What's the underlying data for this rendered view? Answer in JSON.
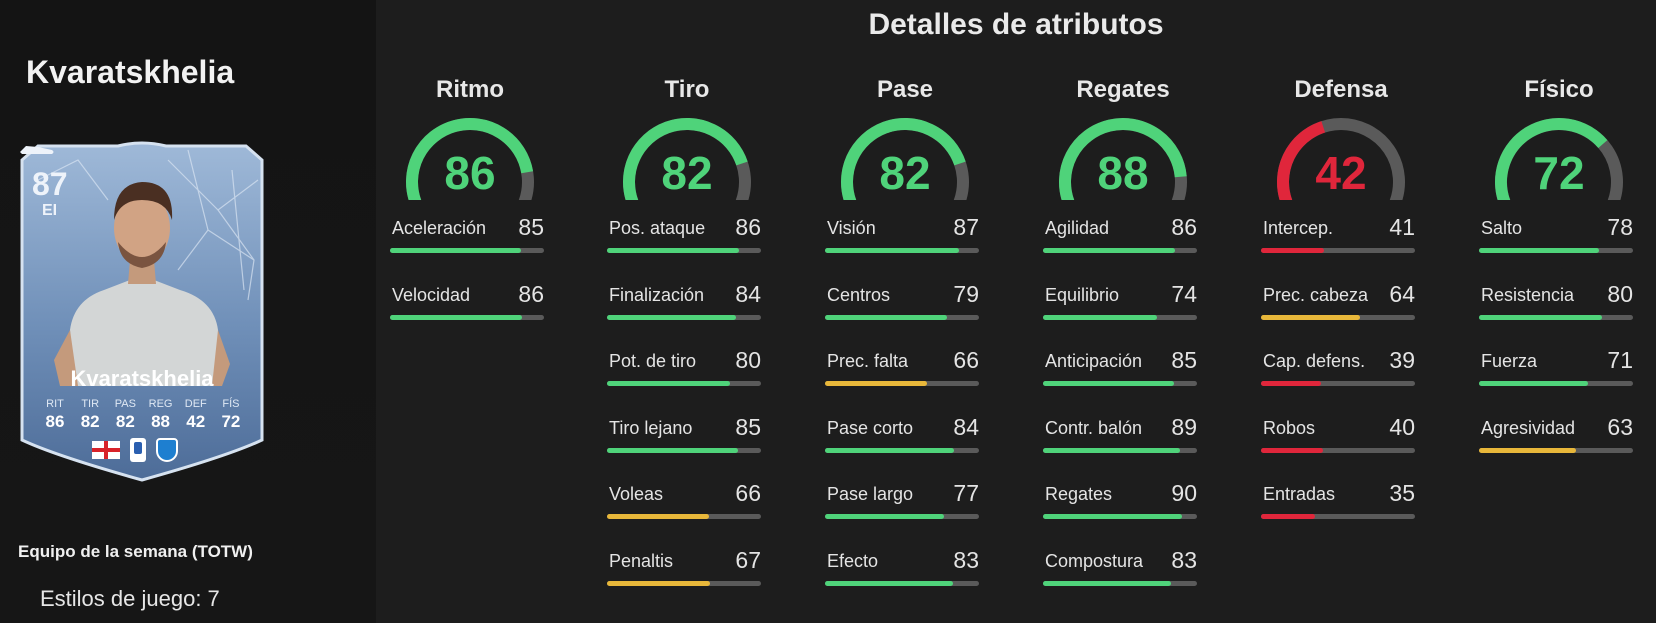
{
  "player_title": "Kvaratskhelia",
  "card": {
    "rating": "87",
    "position": "EI",
    "name": "Kvaratskhelia",
    "stats": [
      {
        "label": "RIT",
        "value": "86"
      },
      {
        "label": "TIR",
        "value": "82"
      },
      {
        "label": "PAS",
        "value": "82"
      },
      {
        "label": "REG",
        "value": "88"
      },
      {
        "label": "DEF",
        "value": "42"
      },
      {
        "label": "FÍS",
        "value": "72"
      }
    ]
  },
  "promo_label": "Equipo de la semana (TOTW)",
  "playstyles_label": "Estilos de juego: 7",
  "main_title": "Detalles de atributos",
  "colors": {
    "green": "#4fd37a",
    "yellow": "#e8b73a",
    "red": "#e0263b",
    "track": "#5a5a5a"
  },
  "categories": [
    {
      "name": "Ritmo",
      "value": "86",
      "attributes": [
        {
          "name": "Aceleración",
          "value": "85"
        },
        {
          "name": "Velocidad",
          "value": "86"
        }
      ]
    },
    {
      "name": "Tiro",
      "value": "82",
      "attributes": [
        {
          "name": "Pos. ataque",
          "value": "86"
        },
        {
          "name": "Finalización",
          "value": "84"
        },
        {
          "name": "Pot. de tiro",
          "value": "80"
        },
        {
          "name": "Tiro lejano",
          "value": "85"
        },
        {
          "name": "Voleas",
          "value": "66"
        },
        {
          "name": "Penaltis",
          "value": "67"
        }
      ]
    },
    {
      "name": "Pase",
      "value": "82",
      "attributes": [
        {
          "name": "Visión",
          "value": "87"
        },
        {
          "name": "Centros",
          "value": "79"
        },
        {
          "name": "Prec. falta",
          "value": "66"
        },
        {
          "name": "Pase corto",
          "value": "84"
        },
        {
          "name": "Pase largo",
          "value": "77"
        },
        {
          "name": "Efecto",
          "value": "83"
        }
      ]
    },
    {
      "name": "Regates",
      "value": "88",
      "attributes": [
        {
          "name": "Agilidad",
          "value": "86"
        },
        {
          "name": "Equilibrio",
          "value": "74"
        },
        {
          "name": "Anticipación",
          "value": "85"
        },
        {
          "name": "Contr. balón",
          "value": "89"
        },
        {
          "name": "Regates",
          "value": "90"
        },
        {
          "name": "Compostura",
          "value": "83"
        }
      ]
    },
    {
      "name": "Defensa",
      "value": "42",
      "attributes": [
        {
          "name": "Intercep.",
          "value": "41"
        },
        {
          "name": "Prec. cabeza",
          "value": "64"
        },
        {
          "name": "Cap. defens.",
          "value": "39"
        },
        {
          "name": "Robos",
          "value": "40"
        },
        {
          "name": "Entradas",
          "value": "35"
        }
      ]
    },
    {
      "name": "Físico",
      "value": "72",
      "attributes": [
        {
          "name": "Salto",
          "value": "78"
        },
        {
          "name": "Resistencia",
          "value": "80"
        },
        {
          "name": "Fuerza",
          "value": "71"
        },
        {
          "name": "Agresividad",
          "value": "63"
        }
      ]
    }
  ]
}
